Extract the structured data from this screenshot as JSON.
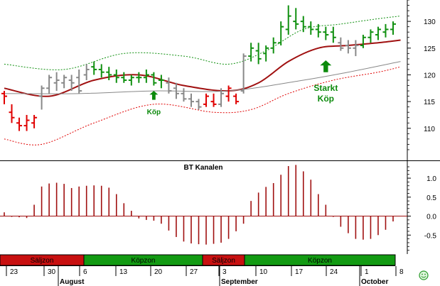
{
  "colors": {
    "green": "#109010",
    "red": "#e00000",
    "gray": "#888888",
    "darkred": "#a01010",
    "zone_sell": "#c81010",
    "zone_buy": "#129a12",
    "arrow": "#0c8a0c"
  },
  "chart_data": [
    {
      "type": "ohlc",
      "ylim": [
        104,
        134
      ],
      "yticks": [
        110,
        115,
        120,
        125,
        130
      ],
      "annotations": [
        {
          "text": "Köp",
          "x": 20
        },
        {
          "text": "Starkt",
          "x": 43
        },
        {
          "text": "Köp",
          "x": 43
        }
      ],
      "bars": [
        {
          "x": 0,
          "o": 116.5,
          "h": 117.0,
          "l": 114.5,
          "c": 116.0,
          "color": "red"
        },
        {
          "x": 1,
          "o": 113.0,
          "h": 114.5,
          "l": 111.0,
          "c": 112.0,
          "color": "red"
        },
        {
          "x": 2,
          "o": 111.0,
          "h": 112.0,
          "l": 109.5,
          "c": 110.5,
          "color": "red"
        },
        {
          "x": 3,
          "o": 110.5,
          "h": 112.5,
          "l": 109.5,
          "c": 111.5,
          "color": "red"
        },
        {
          "x": 4,
          "o": 111.0,
          "h": 112.5,
          "l": 110.0,
          "c": 112.0,
          "color": "red"
        },
        {
          "x": 5,
          "o": 116.0,
          "h": 118.0,
          "l": 113.5,
          "c": 117.5,
          "color": "gray"
        },
        {
          "x": 6,
          "o": 117.5,
          "h": 120.0,
          "l": 116.5,
          "c": 119.5,
          "color": "gray"
        },
        {
          "x": 7,
          "o": 118.5,
          "h": 120.5,
          "l": 117.0,
          "c": 119.0,
          "color": "gray"
        },
        {
          "x": 8,
          "o": 118.5,
          "h": 120.0,
          "l": 117.5,
          "c": 119.5,
          "color": "gray"
        },
        {
          "x": 9,
          "o": 119.0,
          "h": 120.0,
          "l": 117.0,
          "c": 118.5,
          "color": "gray"
        },
        {
          "x": 10,
          "o": 119.5,
          "h": 121.0,
          "l": 116.5,
          "c": 117.0,
          "color": "gray"
        },
        {
          "x": 11,
          "o": 120.0,
          "h": 122.0,
          "l": 119.0,
          "c": 121.0,
          "color": "gray"
        },
        {
          "x": 12,
          "o": 121.5,
          "h": 122.5,
          "l": 120.0,
          "c": 121.0,
          "color": "green"
        },
        {
          "x": 13,
          "o": 121.0,
          "h": 122.0,
          "l": 119.5,
          "c": 120.5,
          "color": "green"
        },
        {
          "x": 14,
          "o": 120.5,
          "h": 121.5,
          "l": 119.0,
          "c": 120.0,
          "color": "green"
        },
        {
          "x": 15,
          "o": 120.0,
          "h": 121.0,
          "l": 118.5,
          "c": 119.5,
          "color": "green"
        },
        {
          "x": 16,
          "o": 119.5,
          "h": 120.5,
          "l": 118.5,
          "c": 119.0,
          "color": "green"
        },
        {
          "x": 17,
          "o": 119.0,
          "h": 120.0,
          "l": 118.0,
          "c": 119.5,
          "color": "green"
        },
        {
          "x": 18,
          "o": 119.5,
          "h": 120.5,
          "l": 118.5,
          "c": 119.5,
          "color": "green"
        },
        {
          "x": 19,
          "o": 119.5,
          "h": 121.0,
          "l": 118.5,
          "c": 120.0,
          "color": "green"
        },
        {
          "x": 20,
          "o": 120.0,
          "h": 120.5,
          "l": 118.0,
          "c": 118.5,
          "color": "green"
        },
        {
          "x": 21,
          "o": 119.0,
          "h": 120.0,
          "l": 117.5,
          "c": 119.0,
          "color": "green"
        },
        {
          "x": 22,
          "o": 118.5,
          "h": 119.5,
          "l": 116.5,
          "c": 117.0,
          "color": "gray"
        },
        {
          "x": 23,
          "o": 117.5,
          "h": 118.5,
          "l": 115.5,
          "c": 116.5,
          "color": "gray"
        },
        {
          "x": 24,
          "o": 116.5,
          "h": 117.5,
          "l": 115.0,
          "c": 115.5,
          "color": "gray"
        },
        {
          "x": 25,
          "o": 115.5,
          "h": 116.5,
          "l": 114.0,
          "c": 115.0,
          "color": "gray"
        },
        {
          "x": 26,
          "o": 115.0,
          "h": 115.5,
          "l": 113.5,
          "c": 114.0,
          "color": "gray"
        },
        {
          "x": 27,
          "o": 114.5,
          "h": 116.5,
          "l": 114.0,
          "c": 116.0,
          "color": "red"
        },
        {
          "x": 28,
          "o": 115.0,
          "h": 116.5,
          "l": 114.0,
          "c": 114.5,
          "color": "red"
        },
        {
          "x": 29,
          "o": 114.5,
          "h": 117.5,
          "l": 114.0,
          "c": 116.5,
          "color": "gray"
        },
        {
          "x": 30,
          "o": 116.0,
          "h": 118.0,
          "l": 115.0,
          "c": 117.5,
          "color": "red"
        },
        {
          "x": 31,
          "o": 116.0,
          "h": 116.5,
          "l": 114.5,
          "c": 115.0,
          "color": "red"
        },
        {
          "x": 32,
          "o": 117.0,
          "h": 124.0,
          "l": 116.5,
          "c": 123.5,
          "color": "gray"
        },
        {
          "x": 33,
          "o": 123.5,
          "h": 126.0,
          "l": 122.5,
          "c": 125.0,
          "color": "green"
        },
        {
          "x": 34,
          "o": 124.5,
          "h": 126.0,
          "l": 122.0,
          "c": 123.0,
          "color": "green"
        },
        {
          "x": 35,
          "o": 124.0,
          "h": 125.5,
          "l": 122.5,
          "c": 125.0,
          "color": "green"
        },
        {
          "x": 36,
          "o": 125.0,
          "h": 127.0,
          "l": 124.0,
          "c": 126.0,
          "color": "green"
        },
        {
          "x": 37,
          "o": 126.0,
          "h": 130.0,
          "l": 125.5,
          "c": 129.0,
          "color": "green"
        },
        {
          "x": 38,
          "o": 128.5,
          "h": 133.0,
          "l": 127.5,
          "c": 131.0,
          "color": "green"
        },
        {
          "x": 39,
          "o": 130.0,
          "h": 132.5,
          "l": 128.5,
          "c": 129.5,
          "color": "green"
        },
        {
          "x": 40,
          "o": 130.0,
          "h": 131.0,
          "l": 128.0,
          "c": 129.0,
          "color": "green"
        },
        {
          "x": 41,
          "o": 129.0,
          "h": 130.0,
          "l": 127.5,
          "c": 128.5,
          "color": "green"
        },
        {
          "x": 42,
          "o": 128.5,
          "h": 129.5,
          "l": 127.0,
          "c": 128.0,
          "color": "green"
        },
        {
          "x": 43,
          "o": 128.0,
          "h": 129.0,
          "l": 126.5,
          "c": 127.5,
          "color": "green"
        },
        {
          "x": 44,
          "o": 128.0,
          "h": 129.0,
          "l": 126.0,
          "c": 127.0,
          "color": "green"
        },
        {
          "x": 45,
          "o": 126.0,
          "h": 127.0,
          "l": 124.5,
          "c": 125.0,
          "color": "gray"
        },
        {
          "x": 46,
          "o": 125.5,
          "h": 126.5,
          "l": 124.0,
          "c": 125.0,
          "color": "gray"
        },
        {
          "x": 47,
          "o": 125.0,
          "h": 126.5,
          "l": 123.5,
          "c": 125.5,
          "color": "gray"
        },
        {
          "x": 48,
          "o": 125.5,
          "h": 127.5,
          "l": 125.0,
          "c": 127.0,
          "color": "green"
        },
        {
          "x": 49,
          "o": 127.0,
          "h": 128.5,
          "l": 126.0,
          "c": 128.0,
          "color": "green"
        },
        {
          "x": 50,
          "o": 127.5,
          "h": 129.0,
          "l": 126.5,
          "c": 128.5,
          "color": "green"
        },
        {
          "x": 51,
          "o": 128.0,
          "h": 129.5,
          "l": 127.0,
          "c": 128.5,
          "color": "green"
        },
        {
          "x": 52,
          "o": 128.5,
          "h": 130.0,
          "l": 127.5,
          "c": 129.5,
          "color": "green"
        }
      ],
      "lines": [
        {
          "color": "darkred",
          "points": [
            [
              0,
              117.5
            ],
            [
              6,
              116.0
            ],
            [
              12,
              119.0
            ],
            [
              18,
              120.0
            ],
            [
              24,
              118.0
            ],
            [
              30,
              117.0
            ],
            [
              34,
              118.5
            ],
            [
              38,
              122.5
            ],
            [
              42,
              125.0
            ],
            [
              46,
              125.5
            ],
            [
              50,
              126.0
            ],
            [
              53,
              126.5
            ]
          ]
        },
        {
          "color": "gray",
          "points": [
            [
              0,
              116.5
            ],
            [
              10,
              116.5
            ],
            [
              20,
              117.0
            ],
            [
              30,
              117.0
            ],
            [
              40,
              119.0
            ],
            [
              46,
              120.5
            ],
            [
              53,
              122.5
            ]
          ]
        },
        {
          "color": "green",
          "dashed": true,
          "points": [
            [
              0,
              122.0
            ],
            [
              8,
              121.0
            ],
            [
              16,
              124.0
            ],
            [
              24,
              123.5
            ],
            [
              30,
              122.0
            ],
            [
              35,
              124.5
            ],
            [
              40,
              128.5
            ],
            [
              45,
              129.5
            ],
            [
              50,
              130.5
            ],
            [
              53,
              131.0
            ]
          ]
        },
        {
          "color": "red",
          "dashed": true,
          "points": [
            [
              0,
              108.0
            ],
            [
              5,
              107.0
            ],
            [
              12,
              111.0
            ],
            [
              20,
              114.5
            ],
            [
              28,
              113.0
            ],
            [
              33,
              113.5
            ],
            [
              38,
              116.5
            ],
            [
              44,
              119.0
            ],
            [
              50,
              120.5
            ],
            [
              53,
              121.5
            ]
          ]
        }
      ]
    },
    {
      "type": "bar",
      "title": "BT Kanalen",
      "ylim": [
        -1.0,
        1.45
      ],
      "yticks": [
        -0.5,
        0.0,
        0.5,
        1.0
      ],
      "values": [
        0.1,
        -0.02,
        -0.03,
        -0.05,
        0.3,
        0.78,
        0.86,
        0.88,
        0.85,
        0.74,
        0.78,
        0.8,
        0.81,
        0.8,
        0.75,
        0.58,
        0.34,
        0.14,
        -0.06,
        -0.1,
        -0.12,
        -0.2,
        -0.38,
        -0.55,
        -0.67,
        -0.72,
        -0.74,
        -0.75,
        -0.73,
        -0.7,
        -0.6,
        -0.4,
        -0.2,
        0.4,
        0.62,
        0.77,
        0.87,
        1.09,
        1.32,
        1.35,
        1.18,
        0.96,
        0.58,
        0.3,
        -0.02,
        -0.28,
        -0.45,
        -0.6,
        -0.62,
        -0.6,
        -0.5,
        -0.36,
        -0.14
      ]
    }
  ],
  "zones": [
    {
      "label": "Säljzon",
      "type": "sell"
    },
    {
      "label": "Köpzon",
      "type": "buy"
    },
    {
      "label": "Säljzon",
      "type": "sell"
    },
    {
      "label": "Köpzon",
      "type": "buy"
    }
  ],
  "day_ticks": [
    "23",
    "30",
    "6",
    "13",
    "20",
    "27",
    "3",
    "10",
    "17",
    "24",
    "1",
    "8"
  ],
  "months": [
    "August",
    "September",
    "October"
  ]
}
